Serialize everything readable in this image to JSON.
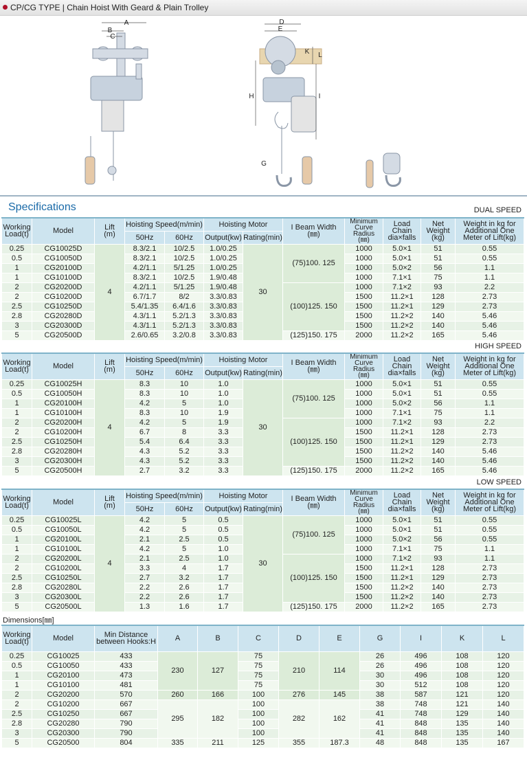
{
  "header": {
    "title": "CP/CG TYPE | Chain Hoist With Geard & Plain Trolley"
  },
  "drawing_labels": [
    "A",
    "B",
    "C",
    "D",
    "E",
    "K",
    "L",
    "H",
    "I",
    "G"
  ],
  "specifications": {
    "title": "Specifications",
    "columns": {
      "load": "Working\nLoad(t)",
      "model": "Model",
      "lift": "Lift\n(m)",
      "speed": "Hoisting Speed(m/min)",
      "hz50": "50Hz",
      "hz60": "60Hz",
      "motor": "Hoisting Motor",
      "output": "Output(kw)",
      "rating": "Rating(min)",
      "ibeam": "I Beam Width\n(㎜)",
      "curve": "Minimum\nCurve\nRadius\n(㎜)",
      "chain": "Load\nChain\ndia×falls",
      "weight": "Net\nWeight\n(kg)",
      "add": "Weight in kg for\nAdditional One\nMeter of Lift(kg)"
    },
    "tables": [
      {
        "label": "DUAL SPEED",
        "lift": "4",
        "rating": "30",
        "ibeam": [
          "(75)100. 125",
          "(100)125. 150",
          "(125)150. 175"
        ],
        "rows": [
          [
            "0.25",
            "CG10025D",
            "8.3/2.1",
            "10/2.5",
            "1.0/0.25",
            "1000",
            "5.0×1",
            "51",
            "0.55"
          ],
          [
            "0.5",
            "CG10050D",
            "8.3/2.1",
            "10/2.5",
            "1.0/0.25",
            "1000",
            "5.0×1",
            "51",
            "0.55"
          ],
          [
            "1",
            "CG20100D",
            "4.2/1.1",
            "5/1.25",
            "1.0/0.25",
            "1000",
            "5.0×2",
            "56",
            "1.1"
          ],
          [
            "1",
            "CG10100D",
            "8.3/2.1",
            "10/2.5",
            "1.9/0.48",
            "1000",
            "7.1×1",
            "75",
            "1.1"
          ],
          [
            "2",
            "CG20200D",
            "4.2/1.1",
            "5/1.25",
            "1.9/0.48",
            "1000",
            "7.1×2",
            "93",
            "2.2"
          ],
          [
            "2",
            "CG10200D",
            "6.7/1.7",
            "8/2",
            "3.3/0.83",
            "1500",
            "11.2×1",
            "128",
            "2.73"
          ],
          [
            "2.5",
            "CG10250D",
            "5.4/1.35",
            "6.4/1.6",
            "3.3/0.83",
            "1500",
            "11.2×1",
            "129",
            "2.73"
          ],
          [
            "2.8",
            "CG20280D",
            "4.3/1.1",
            "5.2/1.3",
            "3.3/0.83",
            "1500",
            "11.2×2",
            "140",
            "5.46"
          ],
          [
            "3",
            "CG20300D",
            "4.3/1.1",
            "5.2/1.3",
            "3.3/0.83",
            "1500",
            "11.2×2",
            "140",
            "5.46"
          ],
          [
            "5",
            "CG20500D",
            "2.6/0.65",
            "3.2/0.8",
            "3.3/0.83",
            "2000",
            "11.2×2",
            "165",
            "5.46"
          ]
        ]
      },
      {
        "label": "HIGH SPEED",
        "lift": "4",
        "rating": "30",
        "ibeam": [
          "(75)100. 125",
          "(100)125. 150",
          "(125)150. 175"
        ],
        "rows": [
          [
            "0.25",
            "CG10025H",
            "8.3",
            "10",
            "1.0",
            "1000",
            "5.0×1",
            "51",
            "0.55"
          ],
          [
            "0.5",
            "CG10050H",
            "8.3",
            "10",
            "1.0",
            "1000",
            "5.0×1",
            "51",
            "0.55"
          ],
          [
            "1",
            "CG20100H",
            "4.2",
            "5",
            "1.0",
            "1000",
            "5.0×2",
            "56",
            "1.1"
          ],
          [
            "1",
            "CG10100H",
            "8.3",
            "10",
            "1.9",
            "1000",
            "7.1×1",
            "75",
            "1.1"
          ],
          [
            "2",
            "CG20200H",
            "4.2",
            "5",
            "1.9",
            "1000",
            "7.1×2",
            "93",
            "2.2"
          ],
          [
            "2",
            "CG10200H",
            "6.7",
            "8",
            "3.3",
            "1500",
            "11.2×1",
            "128",
            "2.73"
          ],
          [
            "2.5",
            "CG10250H",
            "5.4",
            "6.4",
            "3.3",
            "1500",
            "11.2×1",
            "129",
            "2.73"
          ],
          [
            "2.8",
            "CG20280H",
            "4.3",
            "5.2",
            "3.3",
            "1500",
            "11.2×2",
            "140",
            "5.46"
          ],
          [
            "3",
            "CG20300H",
            "4.3",
            "5.2",
            "3.3",
            "1500",
            "11.2×2",
            "140",
            "5.46"
          ],
          [
            "5",
            "CG20500H",
            "2.7",
            "3.2",
            "3.3",
            "2000",
            "11.2×2",
            "165",
            "5.46"
          ]
        ]
      },
      {
        "label": "LOW SPEED",
        "lift": "4",
        "rating": "30",
        "ibeam": [
          "(75)100. 125",
          "(100)125. 150",
          "(125)150. 175"
        ],
        "rows": [
          [
            "0.25",
            "CG10025L",
            "4.2",
            "5",
            "0.5",
            "1000",
            "5.0×1",
            "51",
            "0.55"
          ],
          [
            "0.5",
            "CG10050L",
            "4.2",
            "5",
            "0.5",
            "1000",
            "5.0×1",
            "51",
            "0.55"
          ],
          [
            "1",
            "CG20100L",
            "2.1",
            "2.5",
            "0.5",
            "1000",
            "5.0×2",
            "56",
            "0.55"
          ],
          [
            "1",
            "CG10100L",
            "4.2",
            "5",
            "1.0",
            "1000",
            "7.1×1",
            "75",
            "1.1"
          ],
          [
            "2",
            "CG20200L",
            "2.1",
            "2.5",
            "1.0",
            "1000",
            "7.1×2",
            "93",
            "1.1"
          ],
          [
            "2",
            "CG10200L",
            "3.3",
            "4",
            "1.7",
            "1500",
            "11.2×1",
            "128",
            "2.73"
          ],
          [
            "2.5",
            "CG10250L",
            "2.7",
            "3.2",
            "1.7",
            "1500",
            "11.2×1",
            "129",
            "2.73"
          ],
          [
            "2.8",
            "CG20280L",
            "2.2",
            "2.6",
            "1.7",
            "1500",
            "11.2×2",
            "140",
            "2.73"
          ],
          [
            "3",
            "CG20300L",
            "2.2",
            "2.6",
            "1.7",
            "1500",
            "11.2×2",
            "140",
            "2.73"
          ],
          [
            "5",
            "CG20500L",
            "1.3",
            "1.6",
            "1.7",
            "2000",
            "11.2×2",
            "165",
            "2.73"
          ]
        ]
      }
    ]
  },
  "dimensions": {
    "title": "Dimensions[㎜]",
    "columns": [
      "Working\nLoad(t)",
      "Model",
      "Min Distance\nbetween Hooks:H",
      "A",
      "B",
      "C",
      "D",
      "E",
      "G",
      "I",
      "K",
      "L"
    ],
    "A": [
      "230",
      "260",
      "295",
      "335"
    ],
    "B": [
      "127",
      "166",
      "182",
      "211"
    ],
    "D": [
      "210",
      "276",
      "282",
      "355"
    ],
    "E": [
      "114",
      "145",
      "162",
      "187.3"
    ],
    "rows": [
      [
        "0.25",
        "CG10025",
        "433",
        "75",
        "26",
        "496",
        "108",
        "120"
      ],
      [
        "0.5",
        "CG10050",
        "433",
        "75",
        "26",
        "496",
        "108",
        "120"
      ],
      [
        "1",
        "CG20100",
        "473",
        "75",
        "30",
        "496",
        "108",
        "120"
      ],
      [
        "1",
        "CG10100",
        "481",
        "75",
        "30",
        "512",
        "108",
        "120"
      ],
      [
        "2",
        "CG20200",
        "570",
        "100",
        "38",
        "587",
        "121",
        "120"
      ],
      [
        "2",
        "CG10200",
        "667",
        "100",
        "38",
        "748",
        "121",
        "140"
      ],
      [
        "2.5",
        "CG10250",
        "667",
        "100",
        "41",
        "748",
        "129",
        "140"
      ],
      [
        "2.8",
        "CG20280",
        "790",
        "100",
        "41",
        "848",
        "135",
        "140"
      ],
      [
        "3",
        "CG20300",
        "790",
        "100",
        "41",
        "848",
        "135",
        "140"
      ],
      [
        "5",
        "CG20500",
        "804",
        "125",
        "48",
        "848",
        "135",
        "167"
      ]
    ]
  }
}
